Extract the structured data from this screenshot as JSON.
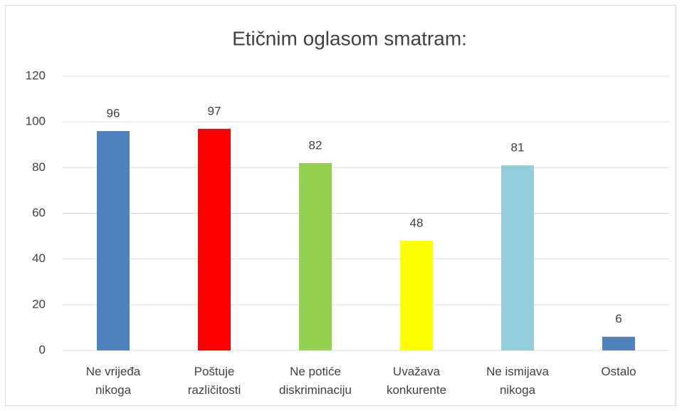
{
  "chart_data": {
    "type": "bar",
    "title": "Etičnim oglasom smatram:",
    "categories": [
      "Ne vrijeđa nikoga",
      "Poštuje različitosti",
      "Ne potiće diskriminaciju",
      "Uvažava konkurente",
      "Ne ismijava nikoga",
      "Ostalo"
    ],
    "values": [
      96,
      97,
      82,
      48,
      81,
      6
    ],
    "colors": [
      "#4f81bd",
      "#ff0000",
      "#92d050",
      "#ffff00",
      "#92cddc",
      "#4f81bd"
    ],
    "ylim": [
      0,
      120
    ],
    "yticks": [
      0,
      20,
      40,
      60,
      80,
      100,
      120
    ],
    "grid": true
  }
}
